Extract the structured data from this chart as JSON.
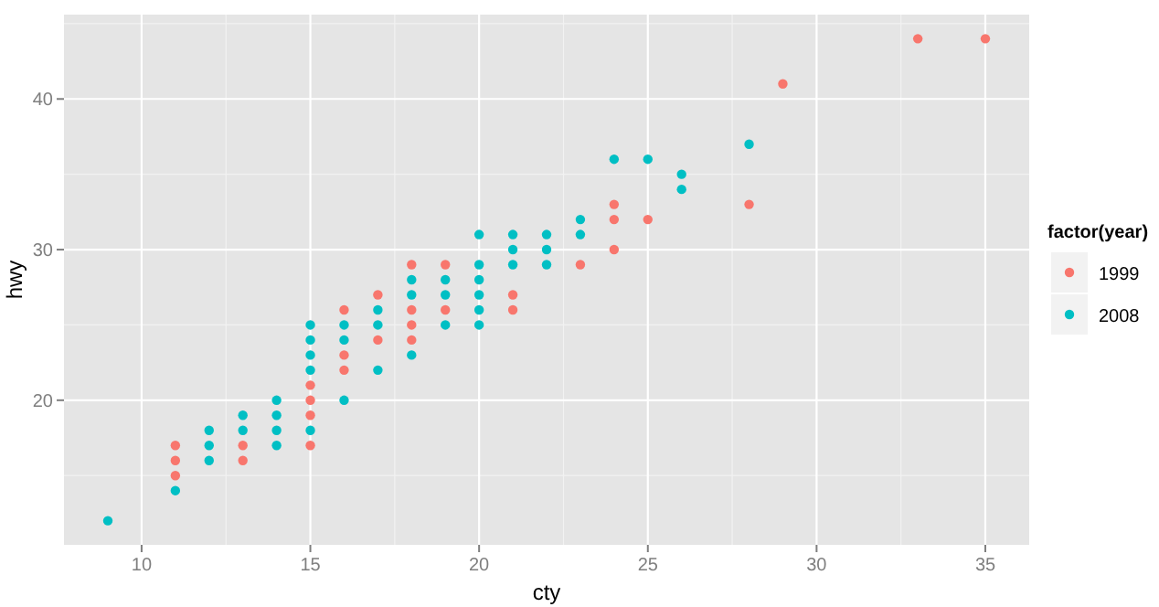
{
  "chart_data": {
    "type": "scatter",
    "xlabel": "cty",
    "ylabel": "hwy",
    "legend_title": "factor(year)",
    "legend": "right",
    "grid": true,
    "marker": "circle",
    "xlim": [
      7.7,
      36.3
    ],
    "ylim": [
      10.4,
      45.6
    ],
    "xticks": [
      10,
      15,
      20,
      25,
      30,
      35
    ],
    "yticks": [
      20,
      30,
      40
    ],
    "series": [
      {
        "name": "1999",
        "color": "#f8766d",
        "x": [
          11,
          11,
          11,
          13,
          13,
          15,
          15,
          15,
          15,
          16,
          16,
          16,
          17,
          17,
          18,
          18,
          18,
          18,
          19,
          19,
          21,
          21,
          23,
          24,
          24,
          24,
          25,
          28,
          29,
          33,
          35
        ],
        "values": [
          17,
          16,
          15,
          17,
          16,
          21,
          20,
          19,
          17,
          26,
          23,
          22,
          27,
          24,
          29,
          26,
          25,
          24,
          29,
          26,
          27,
          26,
          29,
          33,
          32,
          30,
          32,
          33,
          41,
          44,
          44
        ]
      },
      {
        "name": "2008",
        "color": "#00bfc4",
        "x": [
          9,
          11,
          12,
          12,
          12,
          13,
          13,
          14,
          14,
          14,
          14,
          15,
          15,
          15,
          15,
          15,
          16,
          16,
          16,
          17,
          17,
          17,
          18,
          18,
          18,
          19,
          19,
          19,
          20,
          20,
          20,
          20,
          20,
          20,
          21,
          21,
          21,
          22,
          22,
          22,
          23,
          23,
          24,
          25,
          26,
          26,
          28
        ],
        "values": [
          12,
          14,
          18,
          17,
          16,
          19,
          18,
          20,
          19,
          18,
          17,
          25,
          24,
          23,
          22,
          18,
          25,
          24,
          20,
          26,
          25,
          22,
          28,
          27,
          23,
          28,
          27,
          25,
          31,
          29,
          28,
          27,
          26,
          25,
          31,
          30,
          29,
          31,
          30,
          29,
          32,
          31,
          36,
          36,
          35,
          34,
          37
        ]
      }
    ]
  }
}
